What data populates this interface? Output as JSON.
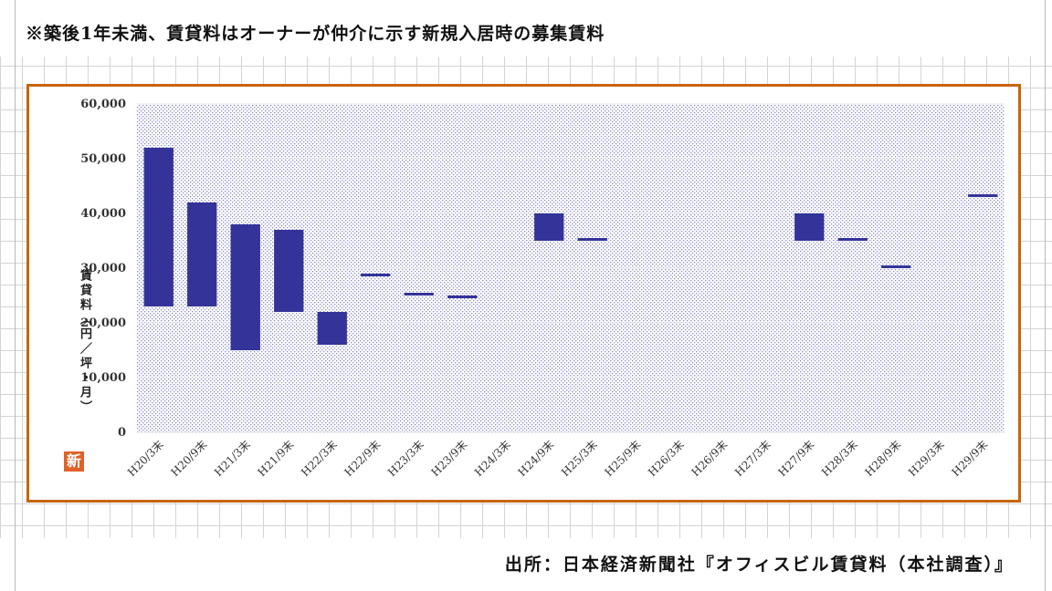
{
  "note": "※築後1年未満、賃貸料はオーナーが仲介に示す新規入居時の募集賃料",
  "source": "出所：日本経済新聞社『オフィスビル賃貸料（本社調査）』",
  "badge": "新",
  "colors": {
    "frame": "#c7650c",
    "bar": "#333399",
    "plot_dots": "#8a8ac4",
    "badge": "#e0612a",
    "grid": "#d4d4d4"
  },
  "chart_data": {
    "type": "bar",
    "subtype": "floating-range",
    "title": "",
    "xlabel": "",
    "ylabel": "賃貸料（円／坪・月）",
    "ylim": [
      0,
      60000
    ],
    "yticks": [
      0,
      10000,
      20000,
      30000,
      40000,
      50000,
      60000
    ],
    "ytick_labels": [
      "0",
      "10,000",
      "20,000",
      "30,000",
      "40,000",
      "50,000",
      "60,000"
    ],
    "grid": true,
    "legend": "none",
    "categories": [
      "H20/3末",
      "H20/9末",
      "H21/3末",
      "H21/9末",
      "H22/3末",
      "H22/9末",
      "H23/3末",
      "H23/9末",
      "H24/3末",
      "H24/9末",
      "H25/3末",
      "H25/9末",
      "H26/3末",
      "H26/9末",
      "H27/3末",
      "H27/9末",
      "H28/3末",
      "H28/9末",
      "H29/3末",
      "H29/9末"
    ],
    "ranges": [
      [
        23000,
        52000
      ],
      [
        23000,
        42000
      ],
      [
        15000,
        38000
      ],
      [
        22000,
        37000
      ],
      [
        16000,
        22000
      ],
      [
        28500,
        29000
      ],
      [
        25000,
        25500
      ],
      [
        24500,
        25000
      ],
      null,
      [
        35000,
        40000
      ],
      [
        35000,
        35500
      ],
      null,
      null,
      null,
      null,
      [
        35000,
        40000
      ],
      [
        35000,
        35500
      ],
      [
        30000,
        30500
      ],
      null,
      [
        43000,
        43500
      ]
    ]
  }
}
